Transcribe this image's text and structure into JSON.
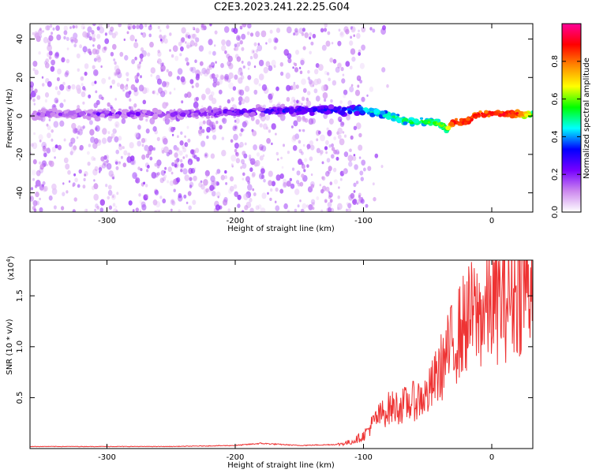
{
  "title": "C2E3.2023.241.22.25.G04",
  "chart_data": [
    {
      "type": "heatmap",
      "xlabel": "Height of straight line (km)",
      "ylabel": "Frequency (Hz)",
      "xlim": [
        -360,
        32
      ],
      "ylim": [
        -50,
        48
      ],
      "xticks": [
        -300,
        -200,
        -100,
        0
      ],
      "yticks": [
        -40,
        -20,
        0,
        20,
        40
      ],
      "colorbar": {
        "label": "Normalized spectral amplitude",
        "range": [
          0,
          1
        ],
        "ticks": [
          0.0,
          0.2,
          0.4,
          0.6,
          0.8
        ],
        "colormap": [
          "#ffffff",
          "#cc88ee",
          "#7700ff",
          "#0000ff",
          "#00ffff",
          "#00ff00",
          "#ffff00",
          "#ff8800",
          "#ff0000",
          "#ff0099"
        ]
      },
      "ridge": {
        "name": "dominant frequency trace",
        "height_km": [
          -360,
          -300,
          -250,
          -200,
          -150,
          -120,
          -100,
          -90,
          -80,
          -70,
          -60,
          -50,
          -40,
          -35,
          -30,
          -25,
          -20,
          -10,
          0,
          10,
          20,
          32
        ],
        "freq_hz": [
          1,
          1,
          1,
          2,
          3,
          3,
          3,
          2,
          0,
          -2,
          -3,
          -3,
          -4,
          -7,
          -3,
          -3,
          -3,
          1,
          1,
          1,
          1,
          1
        ],
        "amplitude": [
          0.15,
          0.2,
          0.2,
          0.25,
          0.3,
          0.35,
          0.45,
          0.5,
          0.5,
          0.55,
          0.5,
          0.55,
          0.6,
          0.55,
          0.9,
          0.9,
          0.9,
          0.9,
          0.92,
          0.9,
          0.9,
          0.6
        ]
      },
      "scatter_extent_km": [
        -360,
        -120
      ]
    },
    {
      "type": "line",
      "xlabel": "Height of straight line (km)",
      "ylabel": "SNR (10 * v/v)",
      "yscale_label": "(x10",
      "yscale_exponent": "4",
      "xlim": [
        -360,
        32
      ],
      "ylim": [
        0,
        1.85
      ],
      "xticks": [
        -300,
        -200,
        -100,
        0
      ],
      "yticks": [
        0.5,
        1.0,
        1.5
      ],
      "color": "#ee3333",
      "series": [
        {
          "x": [
            -360,
            -300,
            -250,
            -200,
            -180,
            -150,
            -120,
            -110,
            -100,
            -90,
            -80,
            -70,
            -60,
            -50,
            -40,
            -30,
            -25,
            -20,
            -15,
            -10,
            -5,
            0,
            10,
            20,
            32
          ],
          "y": [
            0.02,
            0.02,
            0.02,
            0.03,
            0.05,
            0.03,
            0.04,
            0.06,
            0.12,
            0.28,
            0.38,
            0.4,
            0.45,
            0.5,
            0.75,
            1.0,
            1.1,
            1.2,
            1.25,
            1.25,
            1.3,
            1.35,
            1.4,
            1.5,
            1.6
          ]
        }
      ]
    }
  ]
}
